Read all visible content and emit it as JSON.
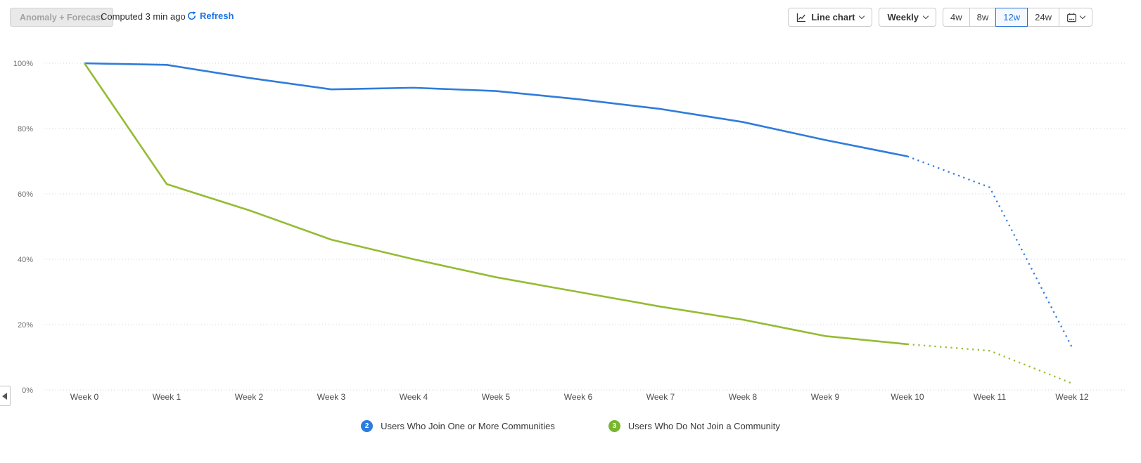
{
  "toolbar": {
    "anomaly_button": "Anomaly + Forecast",
    "computed_text": "Computed 3 min ago",
    "refresh_label": "Refresh",
    "chart_type_label": "Line chart",
    "interval_label": "Weekly",
    "ranges": [
      {
        "label": "4w",
        "selected": false
      },
      {
        "label": "8w",
        "selected": false
      },
      {
        "label": "12w",
        "selected": true
      },
      {
        "label": "24w",
        "selected": false
      }
    ]
  },
  "colors": {
    "accent_blue": "#1f6fd6",
    "refresh_blue": "#1b72e8",
    "gridline": "#c9d4e2",
    "series_blue": "#2f7cdb",
    "series_green": "#95bb33",
    "badge_blue": "#2b7de0",
    "badge_green": "#77b62e"
  },
  "chart_data": {
    "type": "line",
    "title": "",
    "xlabel": "",
    "ylabel": "",
    "x": [
      "Week 0",
      "Week 1",
      "Week 2",
      "Week 3",
      "Week 4",
      "Week 5",
      "Week 6",
      "Week 7",
      "Week 8",
      "Week 9",
      "Week 10",
      "Week 11",
      "Week 12"
    ],
    "y_ticks": [
      "100%",
      "80%",
      "60%",
      "40%",
      "20%",
      "0%"
    ],
    "ylim": [
      0,
      100
    ],
    "grid": "horizontal-dotted",
    "legend_position": "bottom",
    "note": "values are retention percentages; points after forecast_from_index are dotted forecast",
    "series": [
      {
        "name": "Users Who Join One or More Communities",
        "badge": "2",
        "color": "#2f7cdb",
        "badge_color": "#2b7de0",
        "forecast_from_index": 10,
        "values": [
          100,
          99.5,
          95.5,
          92,
          92.5,
          91.5,
          89,
          86,
          82,
          76.5,
          71.5,
          62,
          13
        ]
      },
      {
        "name": "Users Who Do Not Join a Community",
        "badge": "3",
        "color": "#95bb33",
        "badge_color": "#77b62e",
        "forecast_from_index": 10,
        "values": [
          100,
          63,
          55,
          46,
          40,
          34.5,
          30,
          25.5,
          21.5,
          16.5,
          14,
          12,
          2
        ]
      }
    ]
  }
}
